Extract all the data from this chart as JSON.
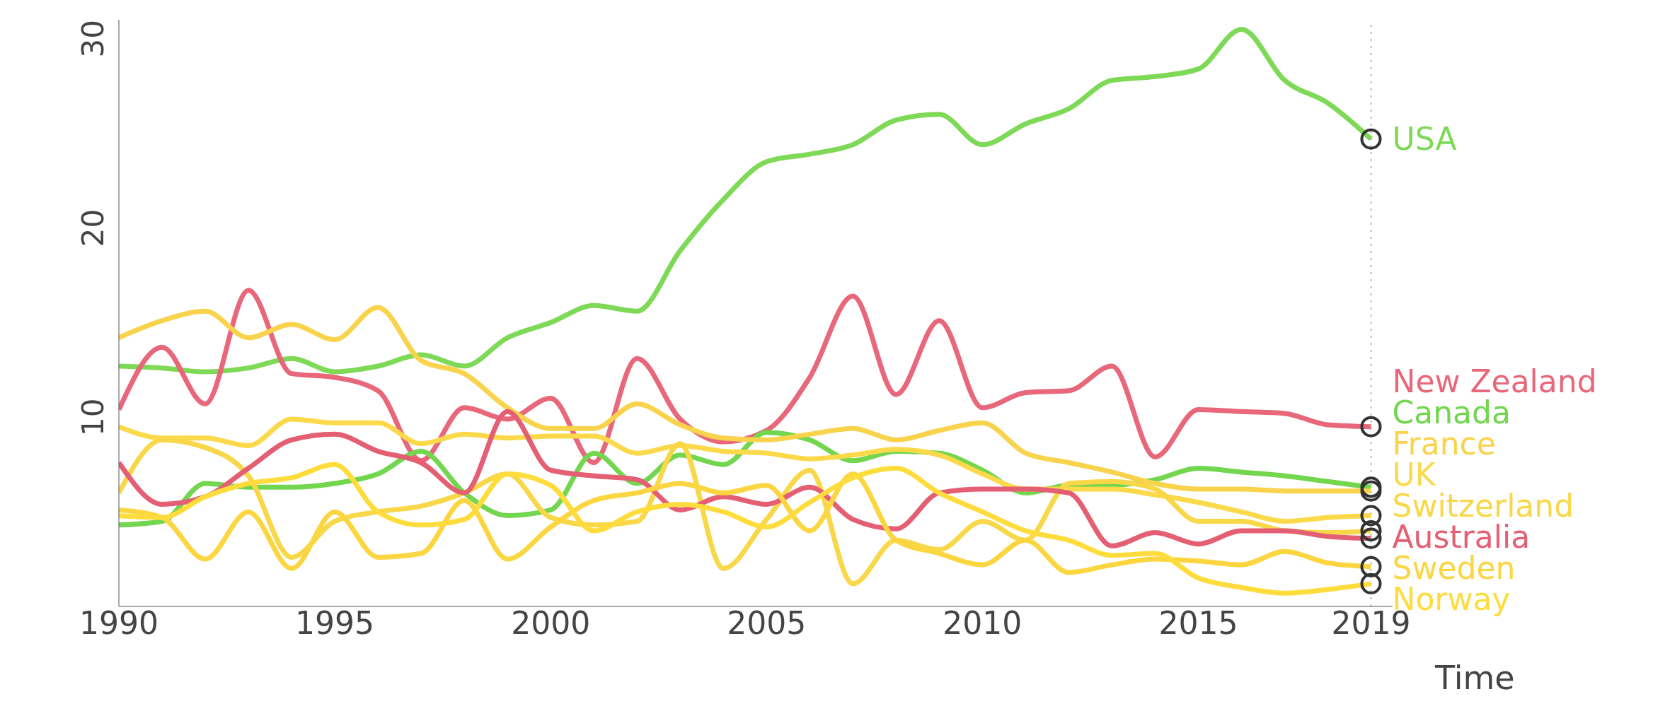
{
  "chart_data": {
    "type": "line",
    "xlabel": "Time",
    "x": [
      1990,
      1991,
      1992,
      1993,
      1994,
      1995,
      1996,
      1997,
      1998,
      1999,
      2000,
      2001,
      2002,
      2003,
      2004,
      2005,
      2006,
      2007,
      2008,
      2009,
      2010,
      2011,
      2012,
      2013,
      2014,
      2015,
      2016,
      2017,
      2018,
      2019
    ],
    "xlim": [
      1990,
      2019.5
    ],
    "xticks": [
      1990,
      1995,
      2000,
      2005,
      2010,
      2015,
      2019
    ],
    "ylim": [
      0,
      31
    ],
    "yticks": [
      10,
      20,
      30
    ],
    "grid": false,
    "legend": "right",
    "ref_lines": [
      {
        "axis": "x",
        "value": 2019,
        "color": "#bbbbbb",
        "line_style": "dotted"
      }
    ],
    "series": [
      {
        "name": "USA",
        "color": "#7ed957",
        "values": [
          12.7,
          12.6,
          12.4,
          12.6,
          13.1,
          12.4,
          12.7,
          13.3,
          12.7,
          14.2,
          15.0,
          15.9,
          15.6,
          18.8,
          21.5,
          23.5,
          23.9,
          24.4,
          25.7,
          26.0,
          24.4,
          25.5,
          26.3,
          27.8,
          28.0,
          28.4,
          30.5,
          27.8,
          26.6,
          24.7
        ]
      },
      {
        "name": "New Zealand",
        "color": "#e8677a",
        "values": [
          10.4,
          13.7,
          10.7,
          16.7,
          12.3,
          12.1,
          11.4,
          7.7,
          10.5,
          9.9,
          11.0,
          7.6,
          13.1,
          9.9,
          8.7,
          9.3,
          12.1,
          16.4,
          11.2,
          15.1,
          10.5,
          11.3,
          11.4,
          12.7,
          7.9,
          10.4,
          10.3,
          10.2,
          9.6,
          9.5
        ]
      },
      {
        "name": "Canada",
        "color": "#72d64e",
        "values": [
          4.3,
          4.5,
          6.5,
          6.3,
          6.3,
          6.5,
          7.0,
          8.2,
          6.0,
          4.8,
          5.1,
          8.1,
          6.5,
          8.0,
          7.5,
          9.2,
          8.8,
          7.7,
          8.2,
          8.1,
          7.2,
          6.0,
          6.4,
          6.4,
          6.7,
          7.3,
          7.1,
          6.9,
          6.6,
          6.3
        ]
      },
      {
        "name": "France",
        "color": "#f9d34c",
        "values": [
          14.2,
          15.1,
          15.6,
          14.2,
          14.9,
          14.1,
          15.8,
          13.0,
          12.3,
          10.5,
          9.4,
          9.4,
          10.7,
          9.6,
          8.9,
          8.8,
          9.1,
          9.4,
          8.8,
          9.3,
          9.7,
          8.1,
          7.6,
          7.1,
          6.5,
          6.2,
          6.2,
          6.1,
          6.1,
          6.1
        ]
      },
      {
        "name": "UK",
        "color": "#fcd94a",
        "values": [
          9.5,
          8.9,
          8.9,
          8.5,
          9.9,
          9.7,
          9.7,
          8.6,
          9.1,
          8.9,
          9.0,
          9.0,
          8.1,
          8.5,
          8.2,
          8.1,
          7.8,
          8.0,
          8.3,
          8.0,
          7.0,
          6.2,
          6.2,
          6.2,
          5.9,
          5.5,
          5.0,
          4.5,
          4.7,
          4.8
        ]
      },
      {
        "name": "Switzerland",
        "color": "#f8d748",
        "values": [
          6.0,
          8.8,
          8.4,
          6.9,
          2.6,
          4.5,
          5.0,
          5.3,
          6.0,
          7.0,
          4.7,
          4.3,
          4.5,
          8.6,
          2.0,
          4.6,
          7.2,
          1.2,
          3.5,
          3.0,
          4.5,
          3.5,
          6.5,
          6.6,
          6.2,
          4.5,
          4.5,
          4.0,
          3.9,
          4.0
        ]
      },
      {
        "name": "Australia",
        "color": "#e45f73",
        "values": [
          7.6,
          5.4,
          5.8,
          7.3,
          8.8,
          9.1,
          8.2,
          7.6,
          6.0,
          10.3,
          7.2,
          6.9,
          6.7,
          5.1,
          5.8,
          5.4,
          6.3,
          4.6,
          4.1,
          6.0,
          6.2,
          6.2,
          6.0,
          3.2,
          3.9,
          3.3,
          4.0,
          4.0,
          3.7,
          3.6
        ]
      },
      {
        "name": "Sweden",
        "color": "#fbd640",
        "values": [
          5.1,
          4.7,
          2.5,
          5.0,
          2.0,
          5.0,
          2.6,
          2.8,
          5.6,
          2.5,
          4.2,
          5.6,
          6.0,
          6.5,
          6.0,
          6.4,
          4.0,
          7.0,
          3.5,
          2.8,
          2.2,
          3.5,
          1.8,
          2.2,
          2.5,
          2.4,
          2.2,
          2.9,
          2.3,
          2.1
        ]
      },
      {
        "name": "Norway",
        "color": "#fedc3c",
        "values": [
          4.8,
          4.7,
          5.8,
          6.5,
          6.8,
          7.5,
          5.0,
          4.3,
          4.6,
          7.0,
          6.4,
          4.0,
          5.0,
          5.4,
          5.0,
          4.2,
          5.5,
          6.8,
          7.3,
          6.0,
          5.0,
          4.0,
          3.5,
          2.7,
          2.8,
          1.5,
          1.0,
          0.7,
          0.9,
          1.2
        ]
      }
    ]
  }
}
